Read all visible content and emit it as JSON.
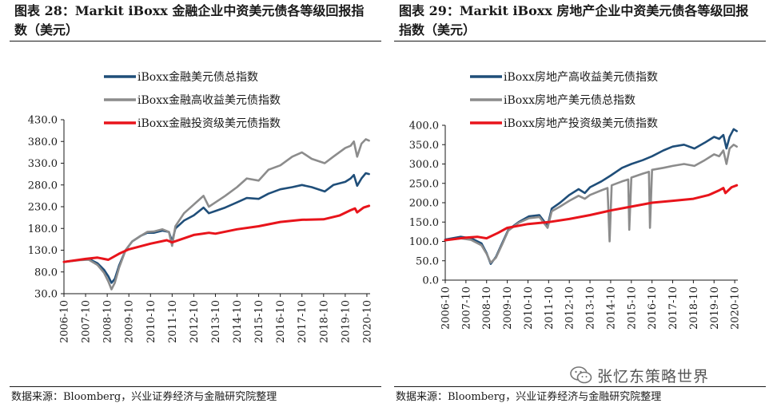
{
  "colors": {
    "navy": "#1f4e79",
    "gray": "#8c8c8c",
    "red": "#e8141b",
    "axis": "#1a1a1a"
  },
  "watermark": {
    "text": "张忆东策略世界"
  },
  "chart_data": [
    {
      "type": "line",
      "title": "图表 28：Markit iBoxx 金融企业中资美元债各等级回报指数（美元）",
      "source": "数据来源：Bloomberg，兴业证券经济与金融研究院整理",
      "xlabel": "",
      "ylabel": "",
      "xlim": [
        2006.75,
        2020.9
      ],
      "ylim": [
        30,
        430
      ],
      "yticks": [
        30,
        80,
        130,
        180,
        230,
        280,
        330,
        380,
        430
      ],
      "ytick_labels": [
        "30.0",
        "80.0",
        "130.0",
        "180.0",
        "230.0",
        "280.0",
        "330.0",
        "380.0",
        "430.0"
      ],
      "xticks": [
        2006.75,
        2007.75,
        2008.75,
        2009.75,
        2010.75,
        2011.75,
        2012.75,
        2013.75,
        2014.75,
        2015.75,
        2016.75,
        2017.75,
        2018.75,
        2019.75,
        2020.75
      ],
      "xtick_labels": [
        "2006-10",
        "2007-10",
        "2008-10",
        "2009-10",
        "2010-10",
        "2011-10",
        "2012-10",
        "2013-10",
        "2014-10",
        "2015-10",
        "2016-10",
        "2017-10",
        "2018-10",
        "2019-10",
        "2020-10"
      ],
      "series": [
        {
          "name": "iBoxx金融美元债总指数",
          "color": "#1f4e79",
          "x": [
            2006.75,
            2007.5,
            2007.9,
            2008.3,
            2008.6,
            2008.8,
            2008.95,
            2009.1,
            2009.3,
            2009.6,
            2009.9,
            2010.3,
            2010.6,
            2010.9,
            2011.3,
            2011.6,
            2011.75,
            2011.9,
            2012.3,
            2012.75,
            2013.2,
            2013.45,
            2013.75,
            2014.2,
            2014.75,
            2015.2,
            2015.75,
            2016.2,
            2016.75,
            2017.3,
            2017.75,
            2018.2,
            2018.8,
            2019.2,
            2019.75,
            2020.0,
            2020.15,
            2020.3,
            2020.5,
            2020.7,
            2020.85
          ],
          "values": [
            103,
            108,
            110,
            100,
            85,
            70,
            55,
            64,
            95,
            130,
            150,
            163,
            170,
            170,
            175,
            172,
            150,
            180,
            198,
            210,
            228,
            215,
            220,
            228,
            240,
            250,
            248,
            260,
            270,
            275,
            280,
            275,
            265,
            280,
            287,
            295,
            303,
            278,
            295,
            307,
            305
          ]
        },
        {
          "name": "iBoxx金融高收益美元债指数",
          "color": "#8c8c8c",
          "x": [
            2006.75,
            2007.5,
            2007.9,
            2008.3,
            2008.6,
            2008.8,
            2008.95,
            2009.1,
            2009.3,
            2009.6,
            2009.9,
            2010.3,
            2010.6,
            2010.9,
            2011.3,
            2011.6,
            2011.75,
            2011.9,
            2012.3,
            2012.75,
            2013.2,
            2013.45,
            2013.75,
            2014.2,
            2014.75,
            2015.2,
            2015.75,
            2016.2,
            2016.75,
            2017.3,
            2017.75,
            2018.2,
            2018.8,
            2019.2,
            2019.75,
            2020.0,
            2020.15,
            2020.3,
            2020.5,
            2020.7,
            2020.85
          ],
          "values": [
            103,
            107,
            108,
            96,
            78,
            58,
            40,
            55,
            90,
            130,
            150,
            163,
            172,
            173,
            178,
            172,
            140,
            185,
            215,
            235,
            255,
            230,
            240,
            255,
            275,
            295,
            290,
            315,
            325,
            345,
            355,
            340,
            330,
            345,
            365,
            370,
            380,
            345,
            375,
            385,
            382
          ]
        },
        {
          "name": "iBoxx金融投资级美元债指数",
          "color": "#e8141b",
          "x": [
            2006.75,
            2007.75,
            2008.3,
            2008.8,
            2009.3,
            2009.75,
            2010.75,
            2011.5,
            2011.75,
            2012.75,
            2013.45,
            2013.75,
            2014.75,
            2015.75,
            2016.75,
            2017.75,
            2018.75,
            2019.5,
            2020.0,
            2020.2,
            2020.3,
            2020.6,
            2020.85
          ],
          "values": [
            103,
            110,
            113,
            108,
            122,
            132,
            145,
            153,
            148,
            165,
            170,
            168,
            178,
            185,
            195,
            200,
            201,
            210,
            222,
            226,
            217,
            228,
            232
          ]
        }
      ]
    },
    {
      "type": "line",
      "title": "图表 29：Markit iBoxx 房地产企业中资美元债各等级回报指数（美元）",
      "source": "数据来源：Bloomberg，兴业证券经济与金融研究院整理",
      "xlabel": "",
      "ylabel": "",
      "xlim": [
        2006.75,
        2020.9
      ],
      "ylim": [
        0,
        400
      ],
      "yticks": [
        0,
        50,
        100,
        150,
        200,
        250,
        300,
        350,
        400
      ],
      "ytick_labels": [
        "0.0",
        "50.0",
        "100.0",
        "150.0",
        "200.0",
        "250.0",
        "300.0",
        "350.0",
        "400.0"
      ],
      "xticks": [
        2006.75,
        2007.75,
        2008.75,
        2009.75,
        2010.75,
        2011.75,
        2012.75,
        2013.75,
        2014.75,
        2015.75,
        2016.75,
        2017.75,
        2018.75,
        2019.75,
        2020.75
      ],
      "xtick_labels": [
        "2006-10",
        "2007-10",
        "2008-10",
        "2009-10",
        "2010-10",
        "2011-10",
        "2012-10",
        "2013-10",
        "2014-10",
        "2015-10",
        "2016-10",
        "2017-10",
        "2018-10",
        "2019-10",
        "2020-10"
      ],
      "series": [
        {
          "name": "iBoxx房地产高收益美元债指数",
          "color": "#1f4e79",
          "x": [
            2006.75,
            2007.5,
            2008.0,
            2008.5,
            2008.75,
            2008.95,
            2009.2,
            2009.5,
            2009.8,
            2010.3,
            2010.8,
            2011.3,
            2011.7,
            2011.9,
            2012.3,
            2012.75,
            2013.2,
            2013.5,
            2013.75,
            2014.3,
            2014.75,
            2015.3,
            2015.75,
            2016.3,
            2016.75,
            2017.3,
            2017.75,
            2018.3,
            2018.8,
            2019.3,
            2019.75,
            2020.0,
            2020.2,
            2020.35,
            2020.5,
            2020.7,
            2020.85
          ],
          "values": [
            105,
            112,
            108,
            95,
            70,
            42,
            60,
            95,
            130,
            150,
            165,
            168,
            140,
            185,
            200,
            220,
            235,
            225,
            240,
            255,
            270,
            290,
            300,
            310,
            320,
            335,
            345,
            350,
            340,
            355,
            370,
            365,
            375,
            340,
            370,
            390,
            385
          ]
        },
        {
          "name": "iBoxx房地产美元债总指数",
          "color": "#8c8c8c",
          "x": [
            2006.75,
            2007.5,
            2008.0,
            2008.5,
            2008.75,
            2008.95,
            2009.2,
            2009.5,
            2009.8,
            2010.3,
            2010.8,
            2011.3,
            2011.7,
            2011.9,
            2012.3,
            2012.75,
            2013.2,
            2013.5,
            2013.75,
            2014.3,
            2014.6,
            2014.7,
            2014.8,
            2015.3,
            2015.6,
            2015.65,
            2015.75,
            2016.3,
            2016.6,
            2016.65,
            2016.75,
            2017.3,
            2017.75,
            2018.3,
            2018.8,
            2019.3,
            2019.75,
            2020.0,
            2020.2,
            2020.35,
            2020.5,
            2020.7,
            2020.85
          ],
          "values": [
            103,
            108,
            104,
            90,
            68,
            45,
            58,
            92,
            128,
            148,
            160,
            163,
            135,
            178,
            190,
            205,
            218,
            210,
            220,
            232,
            238,
            100,
            245,
            255,
            260,
            130,
            265,
            275,
            280,
            135,
            285,
            290,
            295,
            300,
            295,
            310,
            325,
            320,
            335,
            300,
            340,
            350,
            345
          ]
        },
        {
          "name": "iBoxx房地产投资级美元债指数",
          "color": "#e8141b",
          "x": [
            2006.75,
            2007.75,
            2008.3,
            2008.75,
            2009.3,
            2009.75,
            2010.75,
            2011.75,
            2012.75,
            2013.75,
            2014.75,
            2015.75,
            2016.75,
            2017.75,
            2018.75,
            2019.5,
            2020.0,
            2020.2,
            2020.3,
            2020.6,
            2020.85
          ],
          "values": [
            103,
            110,
            112,
            108,
            122,
            135,
            145,
            150,
            158,
            168,
            180,
            190,
            200,
            205,
            210,
            220,
            232,
            238,
            225,
            240,
            245
          ]
        }
      ]
    }
  ]
}
